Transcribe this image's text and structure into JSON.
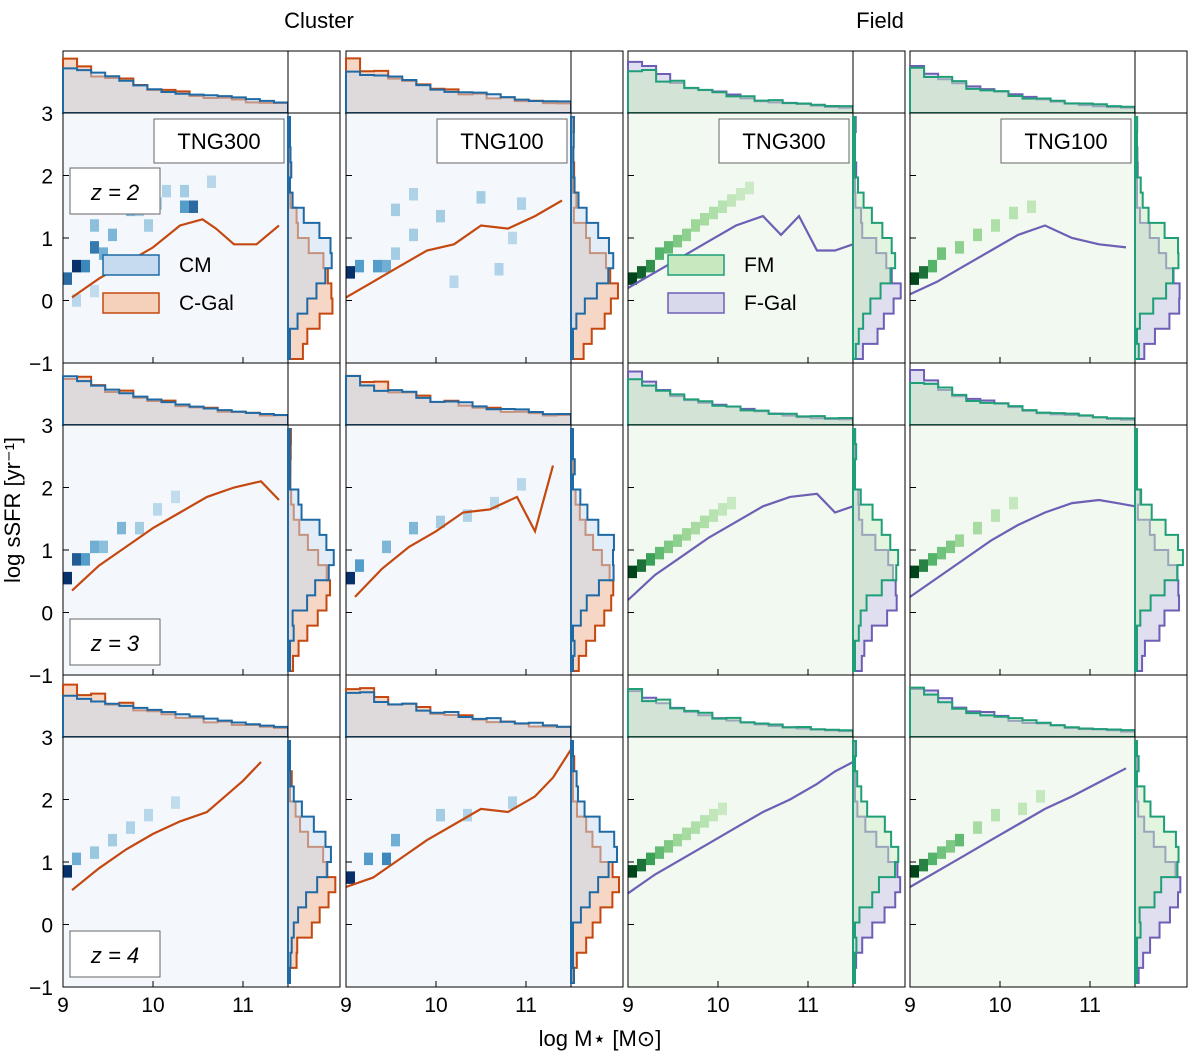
{
  "figure": {
    "group_titles": [
      "Cluster",
      "Field"
    ],
    "xlabel": "log M⋆ [M⊙]",
    "ylabel": "log sSFR [yr⁻¹]",
    "x_ticks": [
      "9",
      "10",
      "11"
    ],
    "y_ticks": [
      "−1",
      "0",
      "1",
      "2",
      "3"
    ],
    "column_labels": [
      "TNG300",
      "TNG100",
      "TNG300",
      "TNG100"
    ],
    "row_labels": [
      "z = 2",
      "z = 3",
      "z = 4"
    ],
    "legend_cluster": [
      "CM",
      "C-Gal"
    ],
    "legend_field": [
      "FM",
      "F-Gal"
    ]
  },
  "colors": {
    "cluster_member": "#1f6aa5",
    "cluster_member_fill": "#c6dbef",
    "cluster_gal": "#c4480f",
    "cluster_gal_fill": "#f5d0bb",
    "field_member": "#1f9e78",
    "field_member_fill": "#c7e9c0",
    "field_gal": "#6d5fb5",
    "field_gal_fill": "#d9d9ec",
    "cluster_bg": "#f4f8fd",
    "field_bg": "#f2f9f0"
  },
  "chart_data": [
    {
      "type": "heatmap",
      "panel": "Cluster TNG300 z=2",
      "cmap": "Blues",
      "xlim": [
        9,
        11.5
      ],
      "ylim": [
        -1,
        3
      ],
      "cells": [
        [
          9.05,
          0.35,
          0.8
        ],
        [
          9.15,
          0.55,
          1.0
        ],
        [
          9.25,
          0.55,
          0.7
        ],
        [
          9.35,
          0.85,
          0.75
        ],
        [
          9.45,
          0.75,
          0.5
        ],
        [
          9.35,
          1.2,
          0.4
        ],
        [
          9.55,
          1.05,
          0.45
        ],
        [
          9.75,
          1.45,
          0.45
        ],
        [
          9.85,
          1.45,
          0.3
        ],
        [
          10.05,
          1.55,
          0.25
        ],
        [
          9.95,
          1.2,
          0.3
        ],
        [
          10.15,
          1.75,
          0.25
        ],
        [
          10.35,
          1.5,
          0.6
        ],
        [
          10.45,
          1.5,
          0.8
        ],
        [
          10.35,
          1.75,
          0.3
        ],
        [
          10.65,
          1.9,
          0.2
        ],
        [
          9.15,
          0.0,
          0.2
        ],
        [
          9.35,
          0.15,
          0.15
        ]
      ],
      "median_line": {
        "x": [
          9.1,
          9.4,
          9.7,
          10.0,
          10.3,
          10.55,
          10.7,
          10.9,
          11.15,
          11.4
        ],
        "y": [
          0.05,
          0.35,
          0.6,
          0.85,
          1.2,
          1.3,
          1.15,
          0.9,
          0.9,
          1.2
        ]
      }
    },
    {
      "type": "heatmap",
      "panel": "Cluster TNG100 z=2",
      "cmap": "Blues",
      "xlim": [
        9,
        11.5
      ],
      "ylim": [
        -1,
        3
      ],
      "cells": [
        [
          9.05,
          0.45,
          1.0
        ],
        [
          9.15,
          0.55,
          0.6
        ],
        [
          9.35,
          0.55,
          0.6
        ],
        [
          9.45,
          0.55,
          0.5
        ],
        [
          9.55,
          0.75,
          0.3
        ],
        [
          9.55,
          1.45,
          0.3
        ],
        [
          9.75,
          1.05,
          0.3
        ],
        [
          10.05,
          1.35,
          0.3
        ],
        [
          10.2,
          0.3,
          0.2
        ],
        [
          10.5,
          1.65,
          0.3
        ],
        [
          10.7,
          0.5,
          0.25
        ],
        [
          10.85,
          1.0,
          0.2
        ],
        [
          10.95,
          1.55,
          0.25
        ],
        [
          9.75,
          1.7,
          0.25
        ]
      ],
      "median_line": {
        "x": [
          9.0,
          9.3,
          9.6,
          9.9,
          10.2,
          10.5,
          10.8,
          11.1,
          11.4
        ],
        "y": [
          0.05,
          0.3,
          0.55,
          0.8,
          0.9,
          1.2,
          1.15,
          1.35,
          1.6
        ]
      }
    },
    {
      "type": "heatmap",
      "panel": "Field TNG300 z=2",
      "cmap": "Greens",
      "xlim": [
        9,
        11.5
      ],
      "ylim": [
        -1,
        3
      ],
      "cells": [
        [
          9.05,
          0.35,
          1.0
        ],
        [
          9.15,
          0.45,
          0.9
        ],
        [
          9.25,
          0.55,
          0.75
        ],
        [
          9.35,
          0.75,
          0.6
        ],
        [
          9.45,
          0.85,
          0.55
        ],
        [
          9.55,
          0.95,
          0.45
        ],
        [
          9.65,
          1.05,
          0.4
        ],
        [
          9.75,
          1.2,
          0.35
        ],
        [
          9.85,
          1.3,
          0.3
        ],
        [
          9.95,
          1.4,
          0.25
        ],
        [
          10.05,
          1.5,
          0.2
        ],
        [
          10.15,
          1.6,
          0.15
        ],
        [
          10.25,
          1.7,
          0.1
        ],
        [
          10.35,
          1.8,
          0.08
        ]
      ],
      "median_line": {
        "x": [
          9.0,
          9.3,
          9.6,
          9.9,
          10.2,
          10.5,
          10.7,
          10.9,
          11.1,
          11.3,
          11.5
        ],
        "y": [
          0.2,
          0.45,
          0.7,
          0.95,
          1.2,
          1.35,
          1.05,
          1.35,
          0.8,
          0.8,
          0.9
        ]
      }
    },
    {
      "type": "heatmap",
      "panel": "Field TNG100 z=2",
      "cmap": "Greens",
      "xlim": [
        9,
        11.5
      ],
      "ylim": [
        -1,
        3
      ],
      "cells": [
        [
          9.05,
          0.35,
          1.0
        ],
        [
          9.15,
          0.45,
          0.85
        ],
        [
          9.25,
          0.55,
          0.6
        ],
        [
          9.35,
          0.75,
          0.5
        ],
        [
          9.55,
          0.85,
          0.4
        ],
        [
          9.75,
          1.05,
          0.35
        ],
        [
          9.95,
          1.2,
          0.25
        ],
        [
          10.15,
          1.4,
          0.2
        ],
        [
          10.35,
          1.5,
          0.15
        ]
      ],
      "median_line": {
        "x": [
          9.0,
          9.3,
          9.6,
          9.9,
          10.2,
          10.5,
          10.8,
          11.1,
          11.4
        ],
        "y": [
          0.1,
          0.3,
          0.55,
          0.8,
          1.05,
          1.2,
          1.0,
          0.9,
          0.85
        ]
      }
    },
    {
      "type": "heatmap",
      "panel": "Cluster TNG300 z=3",
      "cmap": "Blues",
      "xlim": [
        9,
        11.5
      ],
      "ylim": [
        -1,
        3
      ],
      "cells": [
        [
          9.05,
          0.55,
          1.0
        ],
        [
          9.15,
          0.85,
          0.85
        ],
        [
          9.25,
          0.85,
          0.6
        ],
        [
          9.35,
          1.05,
          0.5
        ],
        [
          9.45,
          1.05,
          0.4
        ],
        [
          9.65,
          1.35,
          0.45
        ],
        [
          9.85,
          1.35,
          0.3
        ],
        [
          10.05,
          1.65,
          0.2
        ],
        [
          10.25,
          1.85,
          0.15
        ]
      ],
      "median_line": {
        "x": [
          9.1,
          9.4,
          9.7,
          10.0,
          10.3,
          10.6,
          10.9,
          11.2,
          11.4
        ],
        "y": [
          0.35,
          0.75,
          1.05,
          1.35,
          1.6,
          1.85,
          2.0,
          2.1,
          1.8
        ]
      }
    },
    {
      "type": "heatmap",
      "panel": "Cluster TNG100 z=3",
      "cmap": "Blues",
      "xlim": [
        9,
        11.5
      ],
      "ylim": [
        -1,
        3
      ],
      "cells": [
        [
          9.05,
          0.55,
          1.0
        ],
        [
          9.15,
          0.75,
          0.6
        ],
        [
          9.45,
          1.05,
          0.45
        ],
        [
          9.75,
          1.35,
          0.45
        ],
        [
          10.05,
          1.45,
          0.3
        ],
        [
          10.35,
          1.55,
          0.25
        ],
        [
          10.65,
          1.75,
          0.2
        ],
        [
          10.95,
          2.05,
          0.2
        ]
      ],
      "median_line": {
        "x": [
          9.1,
          9.4,
          9.7,
          10.0,
          10.3,
          10.6,
          10.9,
          11.1,
          11.3
        ],
        "y": [
          0.25,
          0.7,
          1.05,
          1.3,
          1.6,
          1.65,
          1.85,
          1.3,
          2.35
        ]
      }
    },
    {
      "type": "heatmap",
      "panel": "Field TNG300 z=3",
      "cmap": "Greens",
      "xlim": [
        9,
        11.5
      ],
      "ylim": [
        -1,
        3
      ],
      "cells": [
        [
          9.05,
          0.65,
          1.0
        ],
        [
          9.15,
          0.75,
          0.85
        ],
        [
          9.25,
          0.85,
          0.7
        ],
        [
          9.35,
          0.95,
          0.55
        ],
        [
          9.45,
          1.05,
          0.45
        ],
        [
          9.55,
          1.15,
          0.4
        ],
        [
          9.65,
          1.25,
          0.35
        ],
        [
          9.75,
          1.35,
          0.3
        ],
        [
          9.85,
          1.45,
          0.25
        ],
        [
          9.95,
          1.55,
          0.2
        ],
        [
          10.05,
          1.65,
          0.15
        ],
        [
          10.15,
          1.75,
          0.1
        ]
      ],
      "median_line": {
        "x": [
          9.0,
          9.3,
          9.6,
          9.9,
          10.2,
          10.5,
          10.8,
          11.1,
          11.3,
          11.5
        ],
        "y": [
          0.2,
          0.6,
          0.9,
          1.2,
          1.45,
          1.7,
          1.85,
          1.9,
          1.6,
          1.7
        ]
      }
    },
    {
      "type": "heatmap",
      "panel": "Field TNG100 z=3",
      "cmap": "Greens",
      "xlim": [
        9,
        11.5
      ],
      "ylim": [
        -1,
        3
      ],
      "cells": [
        [
          9.05,
          0.65,
          1.0
        ],
        [
          9.15,
          0.75,
          0.8
        ],
        [
          9.25,
          0.85,
          0.6
        ],
        [
          9.35,
          0.95,
          0.5
        ],
        [
          9.45,
          1.05,
          0.45
        ],
        [
          9.55,
          1.15,
          0.35
        ],
        [
          9.75,
          1.35,
          0.3
        ],
        [
          9.95,
          1.55,
          0.2
        ],
        [
          10.15,
          1.75,
          0.12
        ]
      ],
      "median_line": {
        "x": [
          9.0,
          9.3,
          9.6,
          9.9,
          10.2,
          10.5,
          10.8,
          11.1,
          11.3,
          11.5
        ],
        "y": [
          0.25,
          0.55,
          0.85,
          1.15,
          1.4,
          1.6,
          1.75,
          1.8,
          1.75,
          1.7
        ]
      }
    },
    {
      "type": "heatmap",
      "panel": "Cluster TNG300 z=4",
      "cmap": "Blues",
      "xlim": [
        9,
        11.5
      ],
      "ylim": [
        -1,
        3
      ],
      "cells": [
        [
          9.05,
          0.85,
          1.0
        ],
        [
          9.15,
          1.05,
          0.5
        ],
        [
          9.35,
          1.15,
          0.35
        ],
        [
          9.55,
          1.35,
          0.3
        ],
        [
          9.75,
          1.55,
          0.25
        ],
        [
          9.95,
          1.75,
          0.2
        ],
        [
          10.25,
          1.95,
          0.15
        ]
      ],
      "median_line": {
        "x": [
          9.1,
          9.4,
          9.7,
          10.0,
          10.3,
          10.6,
          10.8,
          11.0,
          11.2
        ],
        "y": [
          0.55,
          0.9,
          1.2,
          1.45,
          1.65,
          1.8,
          2.05,
          2.3,
          2.6
        ]
      }
    },
    {
      "type": "heatmap",
      "panel": "Cluster TNG100 z=4",
      "cmap": "Blues",
      "xlim": [
        9,
        11.5
      ],
      "ylim": [
        -1,
        3
      ],
      "cells": [
        [
          9.05,
          0.75,
          1.0
        ],
        [
          9.25,
          1.05,
          0.6
        ],
        [
          9.45,
          1.05,
          0.7
        ],
        [
          9.55,
          1.35,
          0.5
        ],
        [
          10.05,
          1.75,
          0.3
        ],
        [
          10.35,
          1.75,
          0.25
        ],
        [
          10.85,
          1.95,
          0.25
        ]
      ],
      "median_line": {
        "x": [
          9.0,
          9.3,
          9.6,
          9.9,
          10.2,
          10.5,
          10.8,
          11.1,
          11.3,
          11.5
        ],
        "y": [
          0.6,
          0.75,
          1.05,
          1.35,
          1.6,
          1.85,
          1.8,
          2.05,
          2.35,
          2.8
        ]
      }
    },
    {
      "type": "heatmap",
      "panel": "Field TNG300 z=4",
      "cmap": "Greens",
      "xlim": [
        9,
        11.5
      ],
      "ylim": [
        -1,
        3
      ],
      "cells": [
        [
          9.05,
          0.85,
          1.0
        ],
        [
          9.15,
          0.95,
          0.85
        ],
        [
          9.25,
          1.05,
          0.7
        ],
        [
          9.35,
          1.15,
          0.55
        ],
        [
          9.45,
          1.25,
          0.45
        ],
        [
          9.55,
          1.35,
          0.35
        ],
        [
          9.65,
          1.45,
          0.3
        ],
        [
          9.75,
          1.55,
          0.25
        ],
        [
          9.85,
          1.65,
          0.2
        ],
        [
          9.95,
          1.75,
          0.15
        ],
        [
          10.05,
          1.85,
          0.1
        ]
      ],
      "median_line": {
        "x": [
          9.0,
          9.3,
          9.6,
          9.9,
          10.2,
          10.5,
          10.8,
          11.1,
          11.3,
          11.5
        ],
        "y": [
          0.5,
          0.8,
          1.05,
          1.3,
          1.55,
          1.8,
          2.0,
          2.25,
          2.45,
          2.6
        ]
      }
    },
    {
      "type": "heatmap",
      "panel": "Field TNG100 z=4",
      "cmap": "Greens",
      "xlim": [
        9,
        11.5
      ],
      "ylim": [
        -1,
        3
      ],
      "cells": [
        [
          9.05,
          0.85,
          1.0
        ],
        [
          9.15,
          0.95,
          0.8
        ],
        [
          9.25,
          1.05,
          0.6
        ],
        [
          9.35,
          1.15,
          0.5
        ],
        [
          9.45,
          1.25,
          0.45
        ],
        [
          9.55,
          1.35,
          0.55
        ],
        [
          9.75,
          1.55,
          0.3
        ],
        [
          9.95,
          1.75,
          0.2
        ],
        [
          10.25,
          1.85,
          0.15
        ],
        [
          10.45,
          2.05,
          0.12
        ]
      ],
      "median_line": {
        "x": [
          9.0,
          9.3,
          9.6,
          9.9,
          10.2,
          10.5,
          10.8,
          11.0,
          11.2,
          11.4
        ],
        "y": [
          0.6,
          0.85,
          1.1,
          1.35,
          1.6,
          1.85,
          2.05,
          2.2,
          2.35,
          2.5
        ]
      }
    }
  ]
}
